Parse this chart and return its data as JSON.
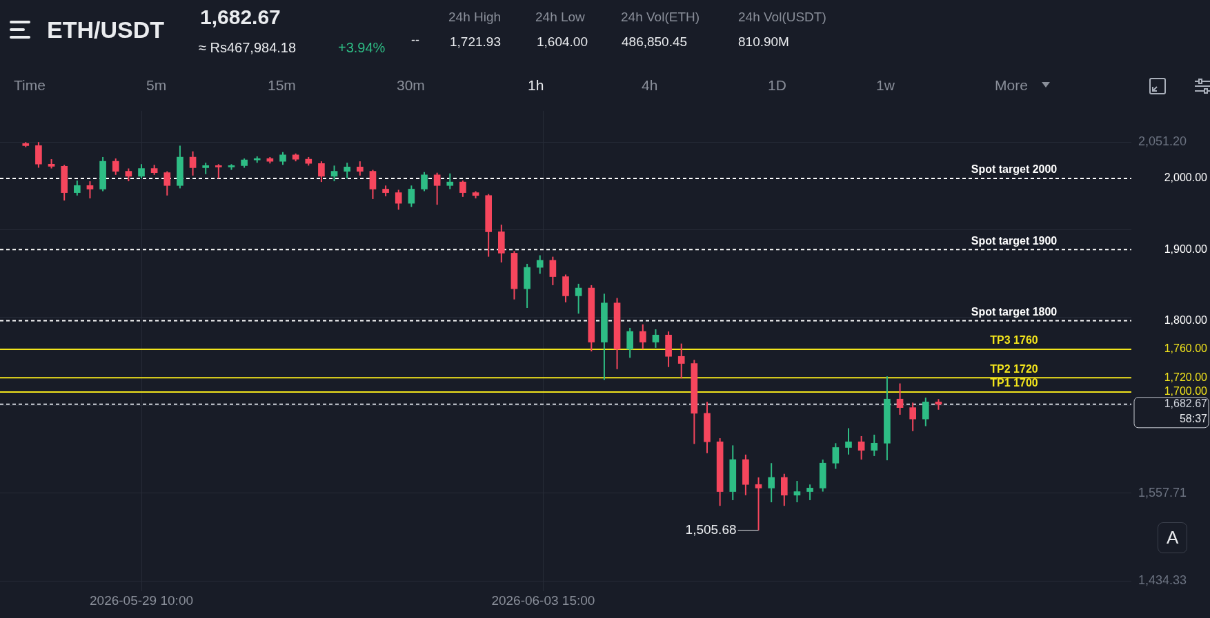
{
  "chart_data": {
    "type": "candlestick",
    "title": "ETH/USDT",
    "x": [
      "2026-05-27T22:00",
      "2026-05-28T02:00",
      "2026-05-28T06:00",
      "2026-05-28T10:00",
      "2026-05-28T14:00",
      "2026-05-28T18:00",
      "2026-05-28T22:00",
      "2026-05-29T02:00",
      "2026-05-29T06:00",
      "2026-05-29T10:00",
      "2026-05-29T14:00",
      "2026-05-29T18:00",
      "2026-05-29T22:00",
      "2026-05-30T02:00",
      "2026-05-30T06:00",
      "2026-05-30T10:00",
      "2026-05-30T14:00",
      "2026-05-30T18:00",
      "2026-05-30T22:00",
      "2026-05-31T02:00",
      "2026-05-31T06:00",
      "2026-05-31T10:00",
      "2026-05-31T14:00",
      "2026-05-31T18:00",
      "2026-05-31T22:00",
      "2026-06-01T02:00",
      "2026-06-01T06:00",
      "2026-06-01T10:00",
      "2026-06-01T14:00",
      "2026-06-01T18:00",
      "2026-06-01T22:00",
      "2026-06-02T02:00",
      "2026-06-02T06:00",
      "2026-06-02T10:00",
      "2026-06-02T14:00",
      "2026-06-02T18:00",
      "2026-06-02T22:00",
      "2026-06-03T02:00",
      "2026-06-03T06:00",
      "2026-06-03T10:00",
      "2026-06-03T14:00",
      "2026-06-03T18:00",
      "2026-06-03T22:00",
      "2026-06-04T02:00",
      "2026-06-04T06:00",
      "2026-06-04T10:00",
      "2026-06-04T14:00",
      "2026-06-04T18:00",
      "2026-06-04T22:00",
      "2026-06-05T02:00",
      "2026-06-05T06:00",
      "2026-06-05T10:00",
      "2026-06-05T14:00",
      "2026-06-05T18:00",
      "2026-06-05T22:00",
      "2026-06-06T02:00",
      "2026-06-06T06:00",
      "2026-06-06T10:00",
      "2026-06-06T14:00",
      "2026-06-06T18:00",
      "2026-06-06T22:00",
      "2026-06-07T02:00",
      "2026-06-07T06:00",
      "2026-06-07T10:00",
      "2026-06-07T14:00",
      "2026-06-07T18:00",
      "2026-06-07T22:00",
      "2026-06-08T02:00",
      "2026-06-08T06:00",
      "2026-06-08T10:00",
      "2026-06-08T14:00",
      "2026-06-08T18:00"
    ],
    "ohlc": [
      [
        2049,
        2051,
        2044,
        2046
      ],
      [
        2046,
        2051,
        2015,
        2020
      ],
      [
        2020,
        2027,
        2014,
        2017
      ],
      [
        2017,
        2019,
        1969,
        1980
      ],
      [
        1980,
        1997,
        1976,
        1990
      ],
      [
        1990,
        1996,
        1972,
        1985
      ],
      [
        1985,
        2030,
        1982,
        2024
      ],
      [
        2024,
        2028,
        2005,
        2010
      ],
      [
        2010,
        2014,
        1996,
        2003
      ],
      [
        2003,
        2020,
        2000,
        2014
      ],
      [
        2014,
        2019,
        2005,
        2008
      ],
      [
        2008,
        2010,
        1976,
        1990
      ],
      [
        1990,
        2046,
        1986,
        2030
      ],
      [
        2030,
        2038,
        2004,
        2015
      ],
      [
        2015,
        2022,
        2006,
        2018
      ],
      [
        2018,
        2020,
        2000,
        2016
      ],
      [
        2016,
        2020,
        2012,
        2018
      ],
      [
        2018,
        2028,
        2015,
        2026
      ],
      [
        2026,
        2031,
        2022,
        2028
      ],
      [
        2028,
        2030,
        2021,
        2024
      ],
      [
        2024,
        2037,
        2019,
        2033
      ],
      [
        2033,
        2035,
        2024,
        2027
      ],
      [
        2027,
        2030,
        2018,
        2021
      ],
      [
        2021,
        2024,
        1995,
        2003
      ],
      [
        2003,
        2018,
        1996,
        2010
      ],
      [
        2010,
        2022,
        2000,
        2016
      ],
      [
        2016,
        2024,
        2004,
        2010
      ],
      [
        2010,
        2012,
        1971,
        1985
      ],
      [
        1985,
        1990,
        1975,
        1980
      ],
      [
        1980,
        1984,
        1956,
        1965
      ],
      [
        1965,
        1990,
        1960,
        1985
      ],
      [
        1985,
        2009,
        1982,
        2005
      ],
      [
        2005,
        2008,
        1963,
        1990
      ],
      [
        1990,
        2007,
        1985,
        1995
      ],
      [
        1995,
        1997,
        1974,
        1980
      ],
      [
        1980,
        1982,
        1972,
        1976
      ],
      [
        1976,
        1978,
        1890,
        1925
      ],
      [
        1925,
        1935,
        1882,
        1895
      ],
      [
        1895,
        1898,
        1830,
        1845
      ],
      [
        1845,
        1880,
        1818,
        1875
      ],
      [
        1875,
        1892,
        1866,
        1885
      ],
      [
        1885,
        1890,
        1850,
        1862
      ],
      [
        1862,
        1865,
        1826,
        1835
      ],
      [
        1835,
        1852,
        1810,
        1846
      ],
      [
        1846,
        1850,
        1757,
        1770
      ],
      [
        1770,
        1838,
        1717,
        1825
      ],
      [
        1825,
        1832,
        1732,
        1760
      ],
      [
        1760,
        1790,
        1748,
        1785
      ],
      [
        1785,
        1795,
        1760,
        1770
      ],
      [
        1770,
        1788,
        1762,
        1780
      ],
      [
        1780,
        1785,
        1735,
        1750
      ],
      [
        1750,
        1768,
        1719,
        1740
      ],
      [
        1740,
        1745,
        1627,
        1670
      ],
      [
        1670,
        1686,
        1614,
        1630
      ],
      [
        1630,
        1635,
        1540,
        1560
      ],
      [
        1560,
        1625,
        1548,
        1605
      ],
      [
        1605,
        1612,
        1555,
        1570
      ],
      [
        1570,
        1580,
        1505.68,
        1565
      ],
      [
        1565,
        1600,
        1545,
        1580
      ],
      [
        1580,
        1585,
        1540,
        1555
      ],
      [
        1555,
        1575,
        1545,
        1560
      ],
      [
        1560,
        1570,
        1548,
        1565
      ],
      [
        1565,
        1605,
        1560,
        1600
      ],
      [
        1600,
        1628,
        1592,
        1622
      ],
      [
        1622,
        1649,
        1612,
        1630
      ],
      [
        1630,
        1638,
        1605,
        1618
      ],
      [
        1618,
        1640,
        1610,
        1628
      ],
      [
        1628,
        1721.93,
        1604,
        1690
      ],
      [
        1690,
        1712,
        1668,
        1678
      ],
      [
        1678,
        1685,
        1645,
        1662
      ],
      [
        1662,
        1692,
        1652,
        1686
      ],
      [
        1686,
        1690,
        1675,
        1682.67
      ]
    ],
    "colors": [
      "#f6465d",
      "#f6465d",
      "#f6465d",
      "#f6465d",
      "#2ebd85",
      "#f6465d",
      "#2ebd85",
      "#f6465d",
      "#f6465d",
      "#2ebd85",
      "#f6465d",
      "#f6465d",
      "#2ebd85",
      "#f6465d",
      "#2ebd85",
      "#f6465d",
      "#2ebd85",
      "#2ebd85",
      "#2ebd85",
      "#f6465d",
      "#2ebd85",
      "#f6465d",
      "#f6465d",
      "#f6465d",
      "#2ebd85",
      "#2ebd85",
      "#f6465d",
      "#f6465d",
      "#f6465d",
      "#f6465d",
      "#2ebd85",
      "#2ebd85",
      "#f6465d",
      "#2ebd85",
      "#f6465d",
      "#f6465d",
      "#f6465d",
      "#f6465d",
      "#f6465d",
      "#2ebd85",
      "#2ebd85",
      "#f6465d",
      "#f6465d",
      "#2ebd85",
      "#f6465d",
      "#2ebd85",
      "#f6465d",
      "#2ebd85",
      "#f6465d",
      "#2ebd85",
      "#f6465d",
      "#f6465d",
      "#f6465d",
      "#f6465d",
      "#f6465d",
      "#2ebd85",
      "#f6465d",
      "#f6465d",
      "#2ebd85",
      "#f6465d",
      "#2ebd85",
      "#2ebd85",
      "#2ebd85",
      "#2ebd85",
      "#2ebd85",
      "#f6465d",
      "#2ebd85",
      "#2ebd85",
      "#f6465d",
      "#f6465d",
      "#2ebd85",
      "#f6465d"
    ],
    "xlim": [
      "2026-05-27T14:00",
      "2026-06-11T06:00"
    ],
    "xticks": [
      {
        "value": "2026-05-29T10:00",
        "label": "2026-05-29 10:00"
      },
      {
        "value": "2026-06-03T15:00",
        "label": "2026-06-03 15:00"
      }
    ],
    "ylim": [
      1420,
      2095
    ],
    "yticks": [
      {
        "value": 2051.2,
        "label": "2,051.20"
      },
      {
        "value": 1927.83,
        "label": null
      },
      {
        "value": 1804.46,
        "label": null
      },
      {
        "value": 1681.08,
        "label": null
      },
      {
        "value": 1557.71,
        "label": "1,557.71"
      },
      {
        "value": 1434.33,
        "label": "1,434.33"
      }
    ],
    "grid": true,
    "ref_lines": [
      {
        "axis": "y",
        "value": 2000,
        "label": "Spot target 2000",
        "color": "#ffffff",
        "line_style": "dashed"
      },
      {
        "axis": "y",
        "value": 1900,
        "label": "Spot target 1900",
        "color": "#ffffff",
        "line_style": "dashed"
      },
      {
        "axis": "y",
        "value": 1800,
        "label": "Spot target 1800",
        "color": "#ffffff",
        "line_style": "dashed"
      },
      {
        "axis": "y",
        "value": 1760,
        "label": "TP3 1760",
        "color": "#f2e41c",
        "line_style": "solid"
      },
      {
        "axis": "y",
        "value": 1720,
        "label": "TP2 1720",
        "color": "#f2e41c",
        "line_style": "solid"
      },
      {
        "axis": "y",
        "value": 1700,
        "label": "TP1 1700",
        "color": "#f2e41c",
        "line_style": "solid"
      },
      {
        "axis": "y",
        "value": 1682.67,
        "color": "#d0d4dc",
        "line_style": "dashed"
      }
    ],
    "annotations": [
      "1,682.67",
      "≈ Rs467,984.18",
      "+3.94%",
      "--",
      "24h High",
      "1,721.93",
      "24h Low",
      "1,604.00",
      "24h Vol(ETH)",
      "486,850.45",
      "24h Vol(USDT)",
      "810.90M",
      "Time",
      "5m",
      "15m",
      "30m",
      "1h",
      "4h",
      "1D",
      "1w",
      "More",
      "A",
      "2,000.00",
      "1,900.00",
      "1,800.00",
      "1,760.00",
      "1,720.00",
      "1,700.00",
      "1,682.67",
      "58:37",
      {
        "text": "1,505.68",
        "x": "2026-06-06T10:00",
        "y": 1505.68
      }
    ]
  }
}
